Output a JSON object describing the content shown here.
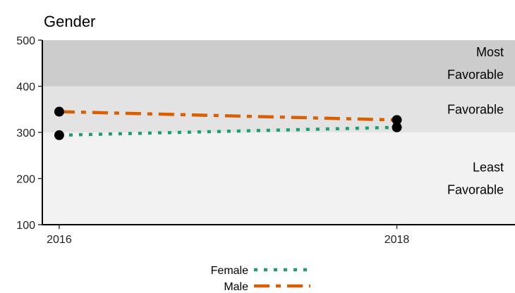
{
  "chart_data": {
    "type": "line",
    "title": "Gender",
    "xlabel": "",
    "ylabel": "",
    "x": [
      2016,
      2018
    ],
    "xlim": [
      2015.9,
      2018.7
    ],
    "ylim": [
      100,
      500
    ],
    "yticks": [
      100,
      200,
      300,
      400,
      500
    ],
    "xticks": [
      2016,
      2018
    ],
    "series": [
      {
        "name": "Female",
        "values": [
          294,
          311
        ],
        "color": "#1b9e77",
        "linestyle": "dotted"
      },
      {
        "name": "Male",
        "values": [
          345,
          327
        ],
        "color": "#d95f02",
        "linestyle": "dashdot"
      }
    ],
    "bands": [
      {
        "label": [
          "Most",
          "Favorable"
        ],
        "from": 400,
        "to": 500,
        "color": "#cccccc"
      },
      {
        "label": [
          "Favorable"
        ],
        "from": 300,
        "to": 400,
        "color": "#e3e3e3"
      },
      {
        "label": [
          "Least",
          "Favorable"
        ],
        "from": 100,
        "to": 300,
        "color": "#f2f2f2"
      }
    ],
    "legend_position": "bottom",
    "grid": false
  }
}
